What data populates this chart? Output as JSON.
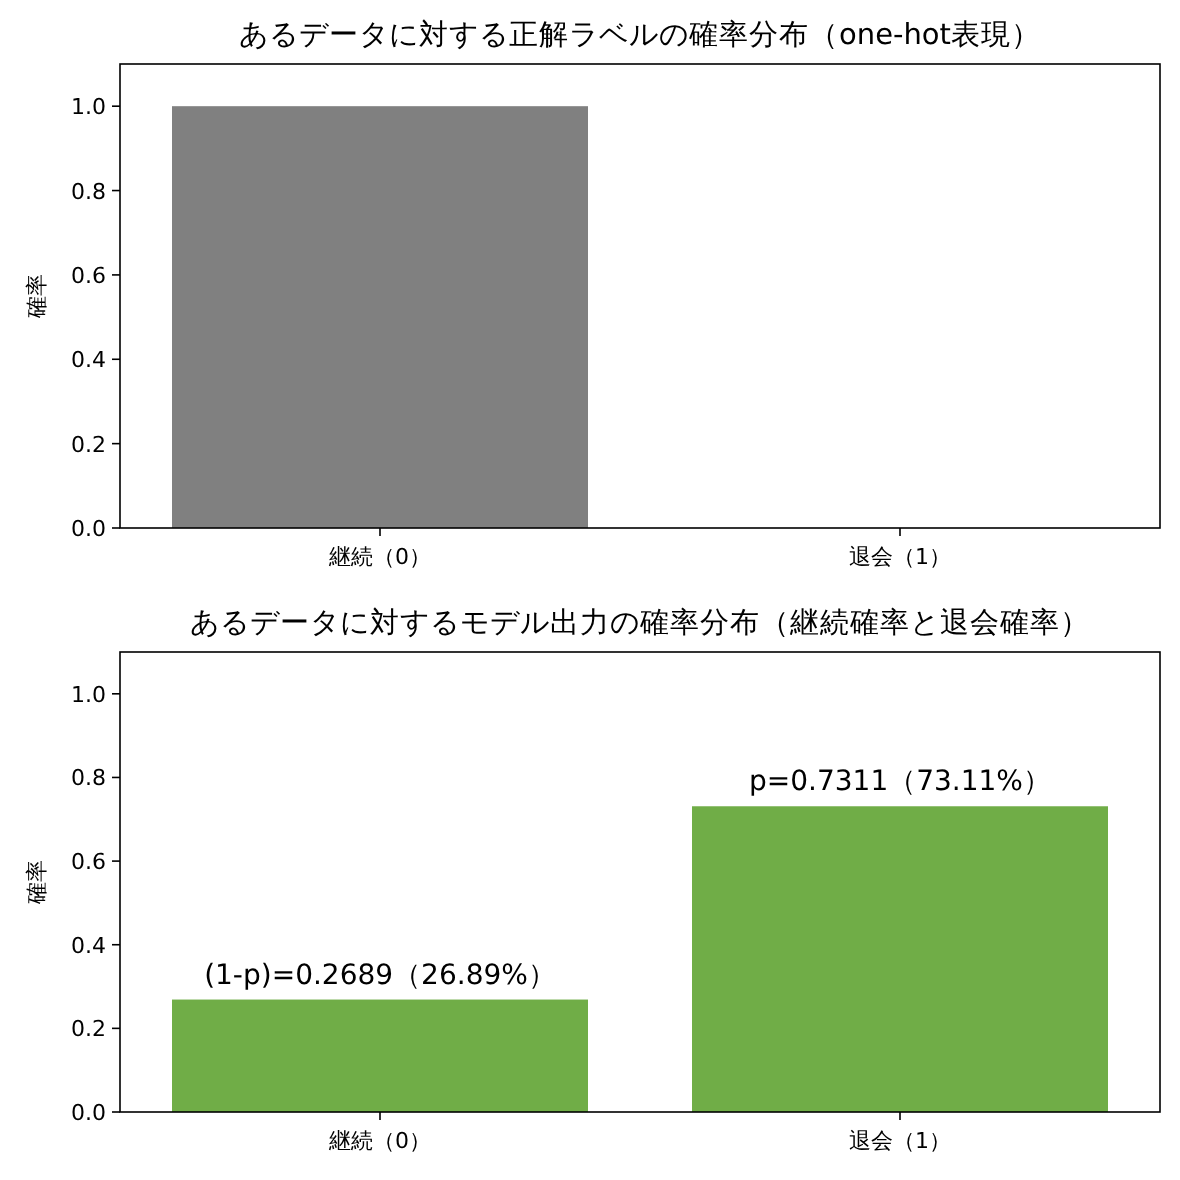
{
  "chart_data": [
    {
      "type": "bar",
      "title": "あるデータに対する正解ラベルの確率分布（one-hot表現）",
      "ylabel": "確率",
      "categories": [
        "継続（0）",
        "退会（1）"
      ],
      "values": [
        1.0,
        0.0
      ],
      "color": "#808080",
      "ylim": [
        0,
        1.1
      ],
      "yticks": [
        {
          "value": 0,
          "label": "0.0"
        },
        {
          "value": 0.2,
          "label": "0.2"
        },
        {
          "value": 0.4,
          "label": "0.4"
        },
        {
          "value": 0.6,
          "label": "0.6"
        },
        {
          "value": 0.8,
          "label": "0.8"
        },
        {
          "value": 1,
          "label": "1.0"
        }
      ]
    },
    {
      "type": "bar",
      "title": "あるデータに対するモデル出力の確率分布（継続確率と退会確率）",
      "ylabel": "確率",
      "categories": [
        "継続（0）",
        "退会（1）"
      ],
      "values": [
        0.2689,
        0.7311
      ],
      "color": "#70ad47",
      "ylim": [
        0,
        1.1
      ],
      "yticks": [
        {
          "value": 0,
          "label": "0.0"
        },
        {
          "value": 0.2,
          "label": "0.2"
        },
        {
          "value": 0.4,
          "label": "0.4"
        },
        {
          "value": 0.6,
          "label": "0.6"
        },
        {
          "value": 0.8,
          "label": "0.8"
        },
        {
          "value": 1,
          "label": "1.0"
        }
      ],
      "value_labels": [
        "(1-p)=0.2689（26.89%）",
        "p=0.7311（73.11%）"
      ]
    }
  ]
}
